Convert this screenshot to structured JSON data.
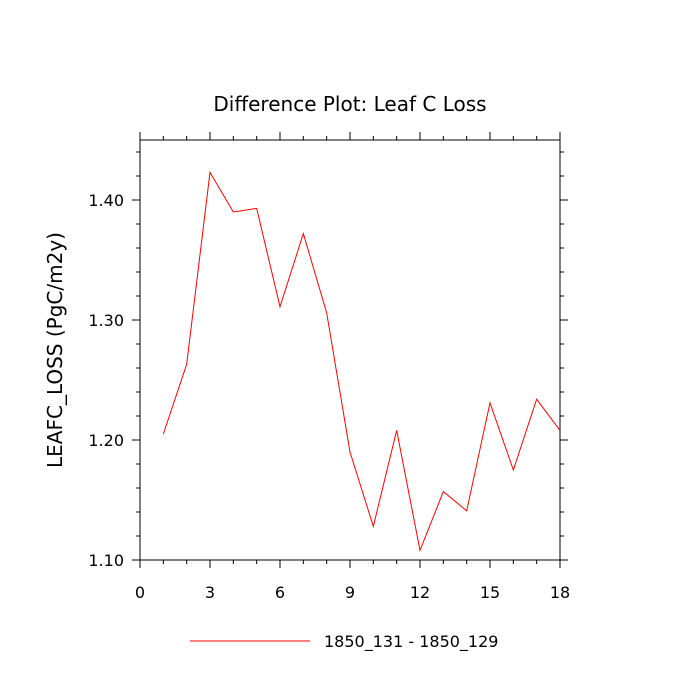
{
  "chart_data": {
    "type": "line",
    "title": "Difference Plot: Leaf C Loss",
    "xlabel": "",
    "ylabel": "LEAFC_LOSS  (PgC/m2y)",
    "xlim": [
      0,
      18
    ],
    "ylim": [
      1.1,
      1.45
    ],
    "xticks": [
      0,
      3,
      6,
      9,
      12,
      15,
      18
    ],
    "xtick_labels": [
      "0",
      "3",
      "6",
      "9",
      "12",
      "15",
      "18"
    ],
    "yticks": [
      1.1,
      1.2,
      1.3,
      1.4
    ],
    "ytick_labels": [
      "1.10",
      "1.20",
      "1.30",
      "1.40"
    ],
    "grid": false,
    "legend_position": "bottom-center",
    "series": [
      {
        "name": "1850_131 - 1850_129",
        "color": "#ff0000",
        "x": [
          1,
          2,
          3,
          4,
          5,
          6,
          7,
          8,
          9,
          10,
          11,
          12,
          13,
          14,
          15,
          16,
          17,
          18
        ],
        "values": [
          1.205,
          1.263,
          1.423,
          1.39,
          1.393,
          1.311,
          1.372,
          1.306,
          1.19,
          1.128,
          1.208,
          1.108,
          1.157,
          1.141,
          1.231,
          1.175,
          1.234,
          1.208
        ]
      }
    ]
  }
}
